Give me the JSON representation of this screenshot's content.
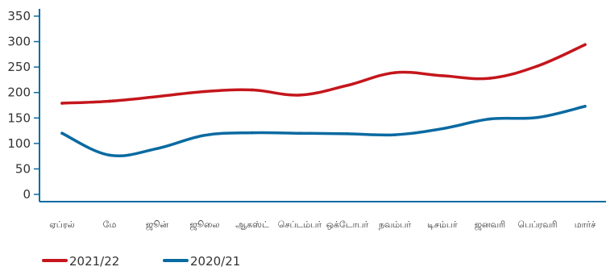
{
  "chart_data": {
    "type": "line",
    "categories": [
      "ஏப்ரல்",
      "மே",
      "ஜூன்",
      "ஜூலை",
      "ஆகஸ்ட்",
      "செப்டம்பர்",
      "ஒக்டோபர்",
      "நவம்பர்",
      "டிசம்பர்",
      "ஜனவரி",
      "பெப்ரவரி",
      "மார்ச்"
    ],
    "series": [
      {
        "name": "2021/22",
        "color": "#c4161c",
        "values": [
          179,
          183,
          192,
          202,
          205,
          195,
          214,
          239,
          233,
          228,
          252,
          294
        ]
      },
      {
        "name": "2020/21",
        "color": "#0a6aa1",
        "values": [
          120,
          77,
          90,
          116,
          121,
          120,
          119,
          117,
          129,
          148,
          151,
          173
        ]
      }
    ],
    "yticks": [
      "0",
      "50",
      "100",
      "150",
      "200",
      "250",
      "300",
      "350"
    ],
    "ylim": [
      0,
      350
    ],
    "legend_position": "bottom-left",
    "grid": false
  }
}
